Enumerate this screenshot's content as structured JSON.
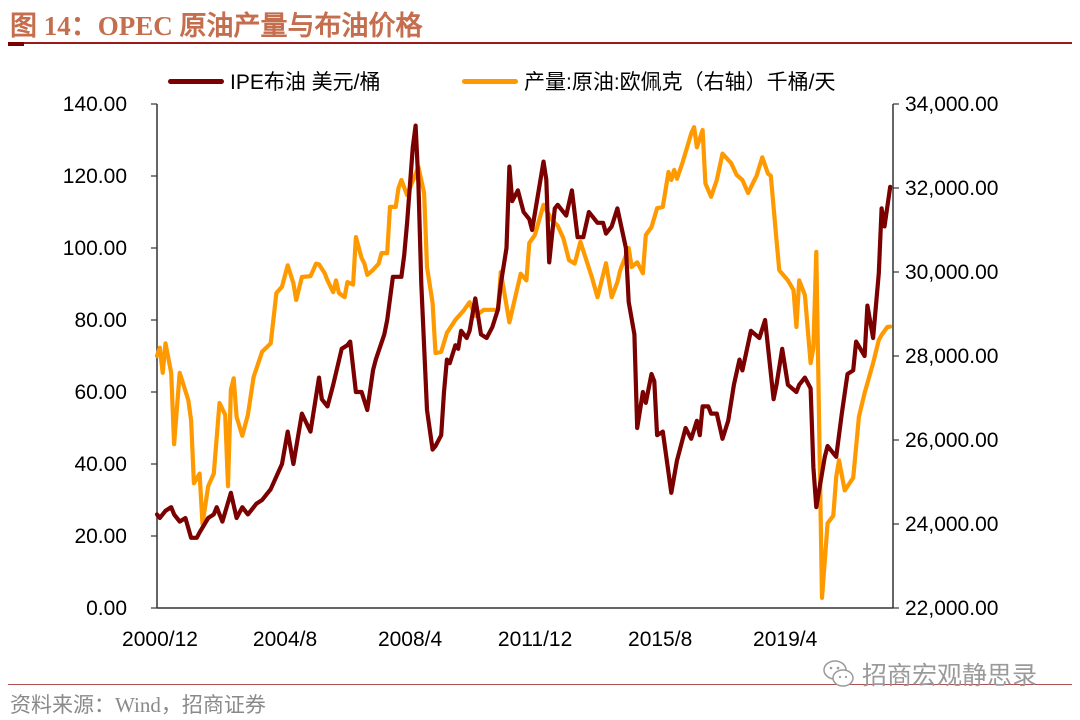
{
  "title": "图 14：OPEC 原油产量与布油价格",
  "source": "资料来源：Wind，招商证券",
  "watermark": {
    "text": "招商宏观静思录",
    "icon": "wechat-icon"
  },
  "chart_data": {
    "type": "line",
    "title": "",
    "legend_position": "top",
    "grid": false,
    "x_ticks": [
      "2000/12",
      "2004/8",
      "2008/4",
      "2011/12",
      "2015/8",
      "2019/4"
    ],
    "x_range": [
      "2000-12",
      "2022-07"
    ],
    "y_left": {
      "range": [
        0,
        140
      ],
      "ticks": [
        "0.00",
        "20.00",
        "40.00",
        "60.00",
        "80.00",
        "100.00",
        "120.00",
        "140.00"
      ]
    },
    "y_right": {
      "range": [
        22000,
        34000
      ],
      "ticks": [
        "22,000.00",
        "24,000.00",
        "26,000.00",
        "28,000.00",
        "30,000.00",
        "32,000.00",
        "34,000.00"
      ]
    },
    "series": [
      {
        "name": "IPE布油 美元/桶",
        "axis": "left",
        "color": "#7B0000",
        "points": [
          [
            "2000-12",
            26
          ],
          [
            "2001-01",
            25
          ],
          [
            "2001-03",
            27
          ],
          [
            "2001-05",
            28
          ],
          [
            "2001-06",
            26
          ],
          [
            "2001-08",
            24
          ],
          [
            "2001-10",
            25
          ],
          [
            "2001-12",
            19.5
          ],
          [
            "2002-02",
            19.5
          ],
          [
            "2002-03",
            21
          ],
          [
            "2002-06",
            25
          ],
          [
            "2002-08",
            26
          ],
          [
            "2002-09",
            28
          ],
          [
            "2002-11",
            24
          ],
          [
            "2003-02",
            32
          ],
          [
            "2003-04",
            25
          ],
          [
            "2003-06",
            28
          ],
          [
            "2003-08",
            26
          ],
          [
            "2003-11",
            29
          ],
          [
            "2004-01",
            30
          ],
          [
            "2004-04",
            33
          ],
          [
            "2004-08",
            40
          ],
          [
            "2004-10",
            49
          ],
          [
            "2004-12",
            40
          ],
          [
            "2005-03",
            54
          ],
          [
            "2005-06",
            49
          ],
          [
            "2005-09",
            64
          ],
          [
            "2005-10",
            58
          ],
          [
            "2005-12",
            56
          ],
          [
            "2006-02",
            62
          ],
          [
            "2006-05",
            72
          ],
          [
            "2006-07",
            73
          ],
          [
            "2006-08",
            74
          ],
          [
            "2006-10",
            60
          ],
          [
            "2006-12",
            60
          ],
          [
            "2007-02",
            55
          ],
          [
            "2007-04",
            66
          ],
          [
            "2007-05",
            69
          ],
          [
            "2007-08",
            76
          ],
          [
            "2007-09",
            80
          ],
          [
            "2007-11",
            92
          ],
          [
            "2008-02",
            92
          ],
          [
            "2008-03",
            98
          ],
          [
            "2008-04",
            107
          ],
          [
            "2008-06",
            128
          ],
          [
            "2008-07",
            134
          ],
          [
            "2008-08",
            118
          ],
          [
            "2008-09",
            90
          ],
          [
            "2008-11",
            55
          ],
          [
            "2009-01",
            44
          ],
          [
            "2009-02",
            45
          ],
          [
            "2009-04",
            48
          ],
          [
            "2009-05",
            60
          ],
          [
            "2009-06",
            69
          ],
          [
            "2009-07",
            68
          ],
          [
            "2009-09",
            73
          ],
          [
            "2009-10",
            72
          ],
          [
            "2009-11",
            77
          ],
          [
            "2010-01",
            75
          ],
          [
            "2010-02",
            77
          ],
          [
            "2010-04",
            86
          ],
          [
            "2010-06",
            76
          ],
          [
            "2010-08",
            75
          ],
          [
            "2010-10",
            78
          ],
          [
            "2010-12",
            83
          ],
          [
            "2011-01",
            90
          ],
          [
            "2011-03",
            100
          ],
          [
            "2011-04",
            122.6
          ],
          [
            "2011-05",
            113
          ],
          [
            "2011-07",
            116
          ],
          [
            "2011-08",
            113
          ],
          [
            "2011-09",
            110
          ],
          [
            "2011-11",
            108
          ],
          [
            "2011-12",
            105
          ],
          [
            "2012-04",
            124
          ],
          [
            "2012-05",
            119
          ],
          [
            "2012-06",
            96
          ],
          [
            "2012-08",
            111
          ],
          [
            "2012-09",
            112
          ],
          [
            "2012-12",
            109
          ],
          [
            "2013-02",
            116
          ],
          [
            "2013-04",
            103
          ],
          [
            "2013-06",
            103
          ],
          [
            "2013-08",
            110
          ],
          [
            "2013-11",
            107
          ],
          [
            "2014-01",
            107
          ],
          [
            "2014-02",
            104
          ],
          [
            "2014-04",
            106
          ],
          [
            "2014-06",
            111
          ],
          [
            "2014-09",
            100
          ],
          [
            "2014-10",
            85
          ],
          [
            "2014-12",
            76
          ],
          [
            "2015-01",
            50
          ],
          [
            "2015-03",
            60
          ],
          [
            "2015-04",
            57
          ],
          [
            "2015-06",
            65
          ],
          [
            "2015-07",
            63
          ],
          [
            "2015-08",
            48
          ],
          [
            "2015-10",
            49
          ],
          [
            "2016-01",
            32
          ],
          [
            "2016-03",
            41
          ],
          [
            "2016-06",
            50
          ],
          [
            "2016-08",
            47
          ],
          [
            "2016-10",
            52
          ],
          [
            "2016-11",
            48
          ],
          [
            "2016-12",
            56
          ],
          [
            "2017-02",
            56
          ],
          [
            "2017-03",
            54
          ],
          [
            "2017-05",
            54
          ],
          [
            "2017-07",
            47
          ],
          [
            "2017-09",
            52
          ],
          [
            "2017-11",
            62
          ],
          [
            "2018-01",
            69
          ],
          [
            "2018-02",
            66
          ],
          [
            "2018-05",
            77
          ],
          [
            "2018-08",
            75
          ],
          [
            "2018-10",
            80
          ],
          [
            "2019-01",
            58
          ],
          [
            "2019-02",
            62
          ],
          [
            "2019-04",
            72
          ],
          [
            "2019-06",
            62
          ],
          [
            "2019-09",
            60
          ],
          [
            "2019-10",
            62
          ],
          [
            "2019-12",
            64
          ],
          [
            "2020-02",
            61
          ],
          [
            "2020-03",
            39
          ],
          [
            "2020-04",
            28
          ],
          [
            "2020-07",
            42
          ],
          [
            "2020-08",
            45
          ],
          [
            "2020-11",
            42
          ],
          [
            "2021-01",
            54
          ],
          [
            "2021-03",
            65
          ],
          [
            "2021-05",
            66
          ],
          [
            "2021-06",
            74
          ],
          [
            "2021-09",
            70
          ],
          [
            "2021-10",
            84
          ],
          [
            "2021-12",
            75
          ],
          [
            "2022-02",
            93
          ],
          [
            "2022-03",
            111
          ],
          [
            "2022-04",
            106
          ],
          [
            "2022-06",
            117
          ]
        ]
      },
      {
        "name": "产量:原油:欧佩克（右轴）千桶/天",
        "axis": "right",
        "color": "#FF9900",
        "points": [
          [
            "2000-12",
            28000
          ],
          [
            "2001-01",
            28200
          ],
          [
            "2001-02",
            27600
          ],
          [
            "2001-03",
            28300
          ],
          [
            "2001-05",
            27600
          ],
          [
            "2001-06",
            25900
          ],
          [
            "2001-08",
            27600
          ],
          [
            "2001-11",
            26950
          ],
          [
            "2001-12",
            26470
          ],
          [
            "2002-01",
            24970
          ],
          [
            "2002-03",
            25200
          ],
          [
            "2002-04",
            24000
          ],
          [
            "2002-06",
            24900
          ],
          [
            "2002-08",
            25200
          ],
          [
            "2002-10",
            26880
          ],
          [
            "2002-12",
            26600
          ],
          [
            "2003-01",
            24900
          ],
          [
            "2003-02",
            27200
          ],
          [
            "2003-03",
            27470
          ],
          [
            "2003-04",
            26550
          ],
          [
            "2003-06",
            26100
          ],
          [
            "2003-08",
            26600
          ],
          [
            "2003-10",
            27500
          ],
          [
            "2004-01",
            28100
          ],
          [
            "2004-04",
            28300
          ],
          [
            "2004-06",
            29500
          ],
          [
            "2004-08",
            29650
          ],
          [
            "2004-10",
            30160
          ],
          [
            "2004-12",
            29730
          ],
          [
            "2005-01",
            29330
          ],
          [
            "2005-03",
            29880
          ],
          [
            "2005-06",
            29900
          ],
          [
            "2005-08",
            30200
          ],
          [
            "2005-09",
            30180
          ],
          [
            "2005-11",
            29970
          ],
          [
            "2005-12",
            29800
          ],
          [
            "2006-02",
            29520
          ],
          [
            "2006-03",
            29800
          ],
          [
            "2006-04",
            29500
          ],
          [
            "2006-06",
            29400
          ],
          [
            "2006-07",
            29760
          ],
          [
            "2006-09",
            29700
          ],
          [
            "2006-10",
            30830
          ],
          [
            "2006-12",
            30330
          ],
          [
            "2007-01",
            30200
          ],
          [
            "2007-02",
            29930
          ],
          [
            "2007-04",
            30050
          ],
          [
            "2007-06",
            30200
          ],
          [
            "2007-07",
            30450
          ],
          [
            "2007-09",
            30450
          ],
          [
            "2007-10",
            31550
          ],
          [
            "2007-12",
            31550
          ],
          [
            "2008-01",
            32000
          ],
          [
            "2008-02",
            32190
          ],
          [
            "2008-04",
            31830
          ],
          [
            "2008-08",
            32500
          ],
          [
            "2008-10",
            31880
          ],
          [
            "2008-11",
            30120
          ],
          [
            "2009-01",
            29260
          ],
          [
            "2009-02",
            28070
          ],
          [
            "2009-04",
            28100
          ],
          [
            "2009-06",
            28550
          ],
          [
            "2009-09",
            28860
          ],
          [
            "2009-12",
            29090
          ],
          [
            "2010-02",
            29280
          ],
          [
            "2010-04",
            28950
          ],
          [
            "2010-07",
            29100
          ],
          [
            "2010-12",
            29100
          ],
          [
            "2011-01",
            30000
          ],
          [
            "2011-04",
            28800
          ],
          [
            "2011-08",
            29960
          ],
          [
            "2011-10",
            29800
          ],
          [
            "2011-11",
            30690
          ],
          [
            "2012-01",
            30880
          ],
          [
            "2012-04",
            31600
          ],
          [
            "2012-07",
            31240
          ],
          [
            "2012-09",
            31100
          ],
          [
            "2012-11",
            30800
          ],
          [
            "2013-01",
            30280
          ],
          [
            "2013-03",
            30200
          ],
          [
            "2013-05",
            30720
          ],
          [
            "2013-07",
            30300
          ],
          [
            "2013-09",
            29880
          ],
          [
            "2013-11",
            29400
          ],
          [
            "2014-02",
            30210
          ],
          [
            "2014-04",
            29400
          ],
          [
            "2014-06",
            29760
          ],
          [
            "2014-07",
            30040
          ],
          [
            "2014-10",
            30570
          ],
          [
            "2014-11",
            30120
          ],
          [
            "2015-01",
            30230
          ],
          [
            "2015-03",
            29970
          ],
          [
            "2015-04",
            30880
          ],
          [
            "2015-06",
            31070
          ],
          [
            "2015-08",
            31520
          ],
          [
            "2015-10",
            31550
          ],
          [
            "2015-12",
            32380
          ],
          [
            "2016-01",
            32190
          ],
          [
            "2016-02",
            32430
          ],
          [
            "2016-03",
            32220
          ],
          [
            "2016-05",
            32620
          ],
          [
            "2016-07",
            33070
          ],
          [
            "2016-08",
            33300
          ],
          [
            "2016-09",
            33450
          ],
          [
            "2016-10",
            32970
          ],
          [
            "2016-12",
            33380
          ],
          [
            "2017-01",
            32110
          ],
          [
            "2017-03",
            31790
          ],
          [
            "2017-05",
            32190
          ],
          [
            "2017-07",
            32820
          ],
          [
            "2017-09",
            32670
          ],
          [
            "2017-10",
            32600
          ],
          [
            "2017-12",
            32310
          ],
          [
            "2018-02",
            32190
          ],
          [
            "2018-04",
            31880
          ],
          [
            "2018-06",
            32160
          ],
          [
            "2018-07",
            32290
          ],
          [
            "2018-09",
            32730
          ],
          [
            "2018-11",
            32340
          ],
          [
            "2018-12",
            32290
          ],
          [
            "2019-02",
            30760
          ],
          [
            "2019-03",
            30040
          ],
          [
            "2019-06",
            29800
          ],
          [
            "2019-08",
            29570
          ],
          [
            "2019-09",
            28690
          ],
          [
            "2019-10",
            29800
          ],
          [
            "2019-12",
            29450
          ],
          [
            "2020-02",
            27830
          ],
          [
            "2020-03",
            28200
          ],
          [
            "2020-04",
            30480
          ],
          [
            "2020-06",
            22240
          ],
          [
            "2020-08",
            24020
          ],
          [
            "2020-10",
            24200
          ],
          [
            "2020-11",
            25120
          ],
          [
            "2020-12",
            25520
          ],
          [
            "2021-02",
            24800
          ],
          [
            "2021-05",
            25100
          ],
          [
            "2021-07",
            26550
          ],
          [
            "2021-09",
            27120
          ],
          [
            "2021-12",
            27830
          ],
          [
            "2022-02",
            28380
          ],
          [
            "2022-03",
            28500
          ],
          [
            "2022-05",
            28690
          ],
          [
            "2022-06",
            28700
          ]
        ]
      }
    ]
  }
}
